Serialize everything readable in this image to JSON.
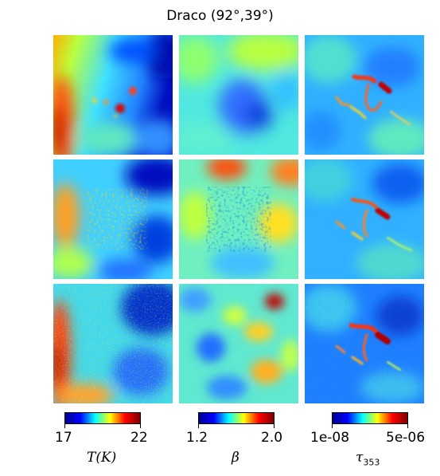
{
  "figure": {
    "title": "Draco (92°,39°)"
  },
  "colormap": "jet",
  "colorbars": [
    {
      "quantity": "T",
      "label_text": "T(K)",
      "tick_min": "17",
      "tick_max": "22"
    },
    {
      "quantity": "beta",
      "label_text": "β",
      "tick_min": "1.2",
      "tick_max": "2.0"
    },
    {
      "quantity": "tau",
      "label_text": "τ",
      "label_sub": "353",
      "tick_min": "1e-08",
      "tick_max": "5e-06"
    }
  ]
}
